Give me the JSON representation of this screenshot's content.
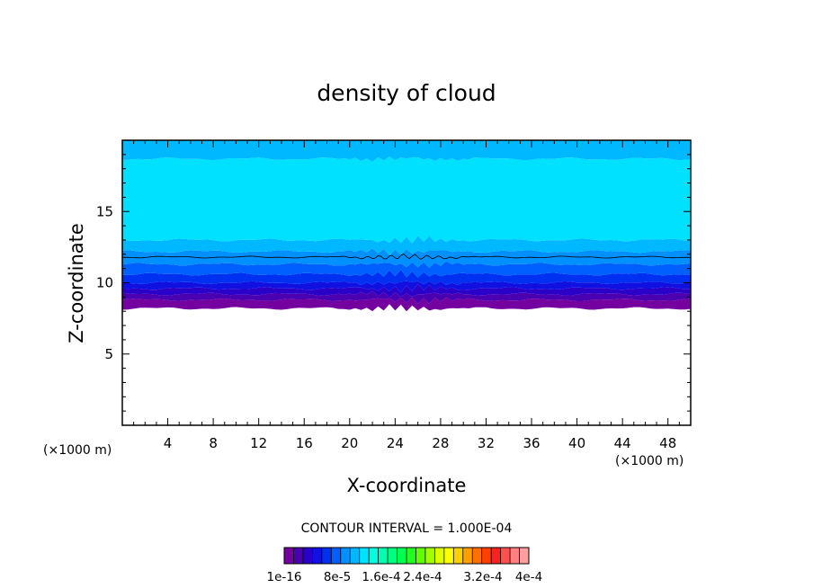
{
  "chart_data": {
    "type": "heatmap",
    "title": "density of cloud",
    "xlabel": "X-coordinate",
    "ylabel": "Z-coordinate",
    "x_unit_left": "(×1000 m)",
    "x_unit_right": "(×1000 m)",
    "xlim": [
      0,
      50
    ],
    "ylim": [
      0,
      20
    ],
    "x_ticks": [
      4,
      8,
      12,
      16,
      20,
      24,
      28,
      32,
      36,
      40,
      44,
      48
    ],
    "y_ticks": [
      5,
      10,
      15
    ],
    "contour_interval": "CONTOUR INTERVAL = 1.000E-04",
    "colorbar": {
      "labels": [
        "1e-16",
        "8e-5",
        "1.6e-4",
        "2.4e-4",
        "3.2e-4",
        "4e-4"
      ],
      "colors": [
        "#7400a0",
        "#4a00b0",
        "#2a00c8",
        "#1010e0",
        "#0030f0",
        "#0060ff",
        "#0090ff",
        "#00b8ff",
        "#00e0ff",
        "#00ffe0",
        "#00ffb0",
        "#00ff80",
        "#00ff50",
        "#20ff20",
        "#60ff00",
        "#a0ff00",
        "#e0ff00",
        "#ffff00",
        "#ffd000",
        "#ffa000",
        "#ff7000",
        "#ff4000",
        "#ff2020",
        "#ff5050",
        "#ff8080",
        "#ffa0a0"
      ]
    },
    "layers": [
      {
        "z_bottom": 8.2,
        "z_top": 8.8,
        "color": "#7400a0"
      },
      {
        "z_bottom": 8.8,
        "z_top": 9.2,
        "color": "#4a00b0"
      },
      {
        "z_bottom": 9.2,
        "z_top": 9.6,
        "color": "#2a00c8"
      },
      {
        "z_bottom": 9.6,
        "z_top": 10.0,
        "color": "#1010e0"
      },
      {
        "z_bottom": 10.0,
        "z_top": 10.6,
        "color": "#0030f0"
      },
      {
        "z_bottom": 10.6,
        "z_top": 11.3,
        "color": "#0060ff"
      },
      {
        "z_bottom": 11.3,
        "z_top": 12.2,
        "color": "#0090ff"
      },
      {
        "z_bottom": 12.2,
        "z_top": 13.0,
        "color": "#00b8ff"
      },
      {
        "z_bottom": 13.0,
        "z_top": 18.7,
        "color": "#00e0ff"
      },
      {
        "z_bottom": 18.7,
        "z_top": 20.0,
        "color": "#00b8ff"
      }
    ],
    "contour_line_z": 11.8
  }
}
